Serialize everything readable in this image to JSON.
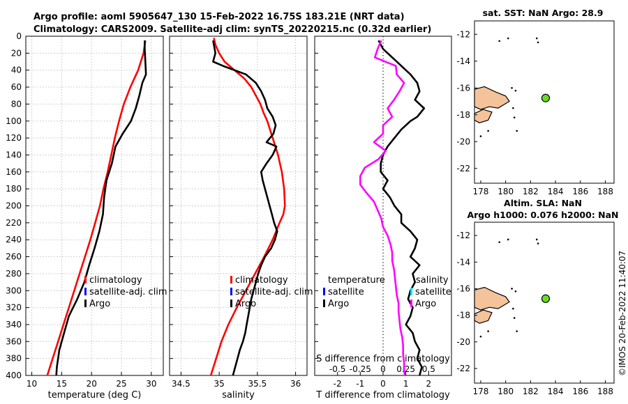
{
  "title": {
    "line1": "Argo profile: aoml 5905647_130 15-Feb-2022 16.75S 183.21E (NRT data)",
    "line2": "Climatology: CARS2009. Satellite-adj clim: synTS_20220215.nc (0.32d earlier)"
  },
  "footer_stamp": "©IMOS 20-Feb-2022 11:40:07",
  "colors": {
    "climatology": "#ff0000",
    "satellite": "#0000ff",
    "argo": "#000000",
    "salinity_diff": "#ff00ff",
    "salinity_sat": "#00e5ee",
    "land": "#f4c39a",
    "float_marker": "#66dd22"
  },
  "chart_data": [
    {
      "id": "temperature",
      "type": "line",
      "xlabel": "temperature (deg C)",
      "ylabel": "depth",
      "xlim": [
        9,
        32
      ],
      "ylim": [
        0,
        400
      ],
      "xticks": [
        10,
        15,
        20,
        25,
        30
      ],
      "yticks": [
        0,
        20,
        40,
        60,
        80,
        100,
        120,
        140,
        160,
        180,
        200,
        220,
        240,
        260,
        280,
        300,
        320,
        340,
        360,
        380,
        400
      ],
      "grid": true,
      "legend_position": "center-right",
      "legend": [
        "climatology",
        "satellite-adj. clim",
        "Argo"
      ],
      "series": [
        {
          "name": "climatology",
          "color": "#ff0000",
          "depth": [
            5,
            20,
            40,
            60,
            80,
            100,
            120,
            140,
            160,
            180,
            200,
            220,
            240,
            260,
            280,
            300,
            320,
            340,
            360,
            380,
            400
          ],
          "values": [
            29.0,
            28.7,
            27.8,
            26.5,
            25.4,
            24.6,
            23.9,
            23.3,
            22.7,
            22.0,
            21.4,
            20.6,
            19.8,
            18.9,
            18.0,
            17.1,
            16.2,
            15.3,
            14.4,
            13.5,
            12.6
          ]
        },
        {
          "name": "Argo",
          "color": "#000000",
          "depth": [
            5,
            15,
            30,
            45,
            55,
            70,
            85,
            100,
            115,
            130,
            150,
            170,
            190,
            210,
            230,
            250,
            270,
            290,
            310,
            330,
            350,
            370,
            390,
            400
          ],
          "values": [
            28.9,
            28.9,
            29.0,
            29.1,
            28.5,
            28.0,
            27.4,
            26.6,
            25.2,
            24.0,
            23.4,
            22.5,
            22.1,
            21.9,
            21.3,
            20.5,
            19.6,
            18.8,
            17.6,
            16.2,
            15.4,
            14.6,
            14.2,
            14.1
          ]
        }
      ]
    },
    {
      "id": "salinity",
      "type": "line",
      "xlabel": "salinity",
      "ylabel": "depth",
      "xlim": [
        34.35,
        36.15
      ],
      "ylim": [
        0,
        400
      ],
      "xticks": [
        34.5,
        35,
        35.5,
        36
      ],
      "xtick_labels": [
        "34.5",
        "35",
        "35.5",
        "36"
      ],
      "grid": true,
      "legend_position": "center-right",
      "legend": [
        "climatology",
        "satellite-adj. clim",
        "Argo"
      ],
      "series": [
        {
          "name": "climatology",
          "color": "#ff0000",
          "depth": [
            2,
            10,
            20,
            30,
            40,
            50,
            60,
            70,
            80,
            90,
            100,
            120,
            140,
            160,
            180,
            200,
            210,
            220,
            240,
            260,
            280,
            300,
            320,
            340,
            360,
            380,
            400
          ],
          "values": [
            34.93,
            34.95,
            35.0,
            35.07,
            35.2,
            35.33,
            35.42,
            35.48,
            35.54,
            35.58,
            35.63,
            35.7,
            35.77,
            35.82,
            35.85,
            35.86,
            35.84,
            35.79,
            35.7,
            35.59,
            35.47,
            35.35,
            35.23,
            35.12,
            35.03,
            34.96,
            34.89
          ]
        },
        {
          "name": "Argo",
          "color": "#000000",
          "depth": [
            5,
            10,
            20,
            30,
            35,
            45,
            55,
            65,
            75,
            85,
            95,
            105,
            115,
            125,
            130,
            140,
            150,
            160,
            170,
            180,
            190,
            200,
            210,
            220,
            230,
            240,
            250,
            260,
            270,
            280,
            290,
            300,
            310,
            320,
            330,
            340,
            350,
            360,
            370,
            380,
            390,
            400
          ],
          "values": [
            34.92,
            34.93,
            34.95,
            34.92,
            35.05,
            35.35,
            35.48,
            35.55,
            35.6,
            35.63,
            35.7,
            35.74,
            35.71,
            35.62,
            35.75,
            35.7,
            35.62,
            35.55,
            35.57,
            35.6,
            35.63,
            35.66,
            35.69,
            35.72,
            35.76,
            35.73,
            35.68,
            35.6,
            35.55,
            35.51,
            35.48,
            35.45,
            35.42,
            35.4,
            35.38,
            35.36,
            35.34,
            35.31,
            35.27,
            35.24,
            35.21,
            35.18
          ]
        }
      ]
    },
    {
      "id": "differences",
      "type": "line",
      "xlabel": "T difference from climatology",
      "xlabel_top": "S difference from climatology",
      "xlim": [
        -3.0,
        3.0
      ],
      "ylim": [
        0,
        400
      ],
      "xticks": [
        -2,
        -1,
        0,
        1,
        2
      ],
      "s_xlim": [
        -0.75,
        0.75
      ],
      "s_xticks": [
        -0.5,
        -0.25,
        0,
        0.25,
        0.5
      ],
      "s_xtick_labels": [
        "-0.5",
        "-0.25",
        "0",
        "0.25",
        "0.5"
      ],
      "legend_headers": {
        "temperature": "temperature",
        "salinity": "salinity"
      },
      "legend": [
        "satellite",
        "Argo",
        "satellite",
        "Argo"
      ],
      "series": [
        {
          "name": "T Argo - clim",
          "color": "#000000",
          "depth": [
            5,
            15,
            25,
            35,
            45,
            55,
            65,
            75,
            85,
            95,
            100,
            110,
            120,
            130,
            140,
            150,
            160,
            170,
            180,
            190,
            200,
            210,
            220,
            230,
            240,
            250,
            260,
            270,
            280,
            290,
            300,
            310,
            320,
            330,
            340,
            350,
            360,
            370,
            380,
            390,
            400
          ],
          "values": [
            -0.2,
            0.0,
            0.4,
            0.8,
            1.2,
            1.5,
            1.6,
            1.4,
            1.8,
            1.5,
            1.2,
            0.8,
            0.5,
            0.2,
            0.0,
            -0.1,
            -0.1,
            0.2,
            0.0,
            0.3,
            0.5,
            0.8,
            0.8,
            1.2,
            1.5,
            1.4,
            1.2,
            1.6,
            1.3,
            1.4,
            1.2,
            1.1,
            1.3,
            1.2,
            1.0,
            1.3,
            1.4,
            1.6,
            1.5,
            1.7,
            1.6
          ]
        },
        {
          "name": "S Argo - clim",
          "color": "#ff00ff",
          "depth": [
            5,
            15,
            25,
            35,
            45,
            55,
            65,
            75,
            85,
            95,
            105,
            115,
            125,
            135,
            145,
            155,
            165,
            175,
            185,
            195,
            205,
            215,
            225,
            235,
            245,
            255,
            265,
            275,
            285,
            295,
            305,
            315,
            325,
            335,
            345,
            355,
            365,
            375,
            385,
            395,
            400
          ],
          "values": [
            -0.02,
            -0.06,
            -0.09,
            0.14,
            0.15,
            0.23,
            0.18,
            0.12,
            0.05,
            0.1,
            0.0,
            0.0,
            -0.1,
            0.03,
            -0.05,
            -0.2,
            -0.25,
            -0.25,
            -0.18,
            -0.1,
            -0.06,
            -0.02,
            0.0,
            0.05,
            0.08,
            0.1,
            0.1,
            0.12,
            0.13,
            0.14,
            0.15,
            0.17,
            0.17,
            0.18,
            0.19,
            0.21,
            0.22,
            0.22,
            0.23,
            0.23,
            0.24
          ]
        }
      ]
    }
  ],
  "maps": [
    {
      "id": "sst-map",
      "title_line1": "sat. SST: NaN Argo: 28.9",
      "title_line2": "",
      "xticks": [
        178,
        180,
        182,
        184,
        186,
        188
      ],
      "yticks": [
        -12,
        -14,
        -16,
        -18,
        -20,
        -22
      ],
      "lon_range": [
        177.5,
        188.7
      ],
      "lat_range": [
        -23.1,
        -11.0
      ],
      "float_position": {
        "lon": 183.21,
        "lat": -16.75
      }
    },
    {
      "id": "sla-map",
      "title_line1": "Altim. SLA: NaN",
      "title_line2": "Argo h1000: 0.076 h2000: NaN",
      "xticks": [
        178,
        180,
        182,
        184,
        186,
        188
      ],
      "yticks": [
        -12,
        -14,
        -16,
        -18,
        -20,
        -22
      ],
      "lon_range": [
        177.5,
        188.7
      ],
      "lat_range": [
        -23.1,
        -11.0
      ],
      "float_position": {
        "lon": 183.21,
        "lat": -16.75
      }
    }
  ]
}
